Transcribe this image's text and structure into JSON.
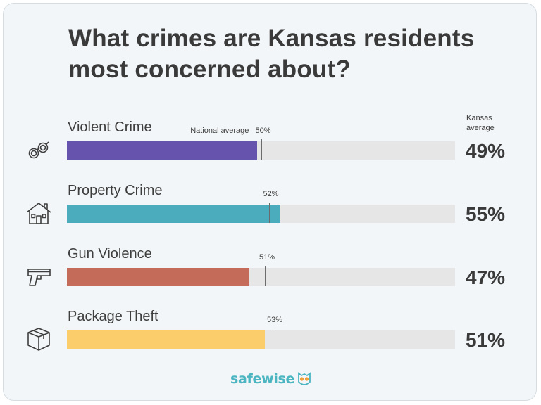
{
  "title": "What crimes are Kansas residents most concerned about?",
  "kansas_header": "Kansas\naverage",
  "national_average_label": "National average",
  "brand": "safewise",
  "colors": {
    "violent": "#6553ad",
    "property": "#4aacbc",
    "gun": "#c46b5a",
    "package": "#fbcd6b",
    "track": "#e6e6e6"
  },
  "chart_data": {
    "type": "bar",
    "orientation": "horizontal",
    "title": "What crimes are Kansas residents most concerned about?",
    "categories": [
      "Violent Crime",
      "Property Crime",
      "Gun Violence",
      "Package Theft"
    ],
    "series": [
      {
        "name": "Kansas average",
        "values": [
          49,
          55,
          47,
          51
        ]
      }
    ],
    "national_average": [
      50,
      52,
      51,
      53
    ],
    "xlim": [
      0,
      100
    ],
    "unit": "%",
    "icons": [
      "handcuffs-icon",
      "house-icon",
      "gun-icon",
      "package-icon"
    ]
  },
  "rows": [
    {
      "label": "Violent Crime",
      "kansas": "49%",
      "national": "50%",
      "color": "#6553ad"
    },
    {
      "label": "Property Crime",
      "kansas": "55%",
      "national": "52%",
      "color": "#4aacbc"
    },
    {
      "label": "Gun Violence",
      "kansas": "47%",
      "national": "51%",
      "color": "#c46b5a"
    },
    {
      "label": "Package Theft",
      "kansas": "51%",
      "national": "53%",
      "color": "#fbcd6b"
    }
  ]
}
